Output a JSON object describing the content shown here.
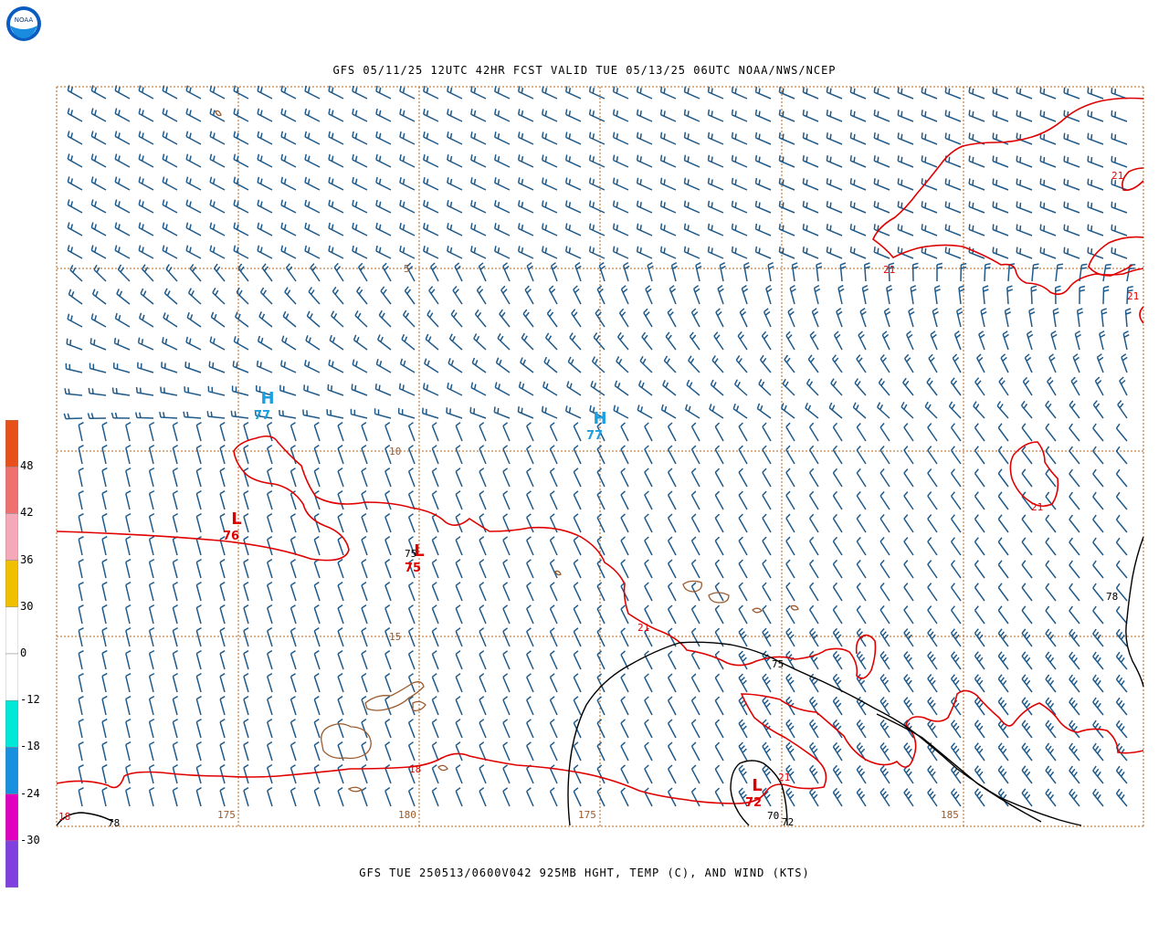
{
  "header": {
    "top_title": "GFS 05/11/25 12UTC 42HR FCST VALID TUE 05/13/25 06UTC NOAA/NWS/NCEP",
    "bottom_title": "GFS TUE 250513/0600V042 925MB HGHT, TEMP (C), AND WIND (KTS)",
    "logo_text": "NOAA"
  },
  "colors": {
    "grid": "#b5651d",
    "barb": "#1f5a8a",
    "isotherm": "#e00000",
    "height_contour": "#000000",
    "high": "#1aa0e0",
    "low": "#e00000",
    "coastline": "#9b5b2e"
  },
  "colorbar": {
    "labels": [
      "48",
      "42",
      "36",
      "30",
      "0",
      "-12",
      "-18",
      "-24",
      "-30"
    ],
    "swatches": [
      "#e8501a",
      "#f07070",
      "#f4a8b8",
      "#f0c000",
      "#ffffff",
      "#ffffff",
      "#00e8d8",
      "#1890e0",
      "#e000c0",
      "#8040e0"
    ]
  },
  "lat_labels": [
    "5",
    "10",
    "15",
    "18",
    "18"
  ],
  "lon_labels": [
    "175",
    "180",
    "175",
    "185",
    "70",
    "78"
  ],
  "pressure_centers": [
    {
      "type": "H",
      "value": "77",
      "color": "high"
    },
    {
      "type": "H",
      "value": "77",
      "color": "high"
    },
    {
      "type": "L",
      "value": "76",
      "color": "low"
    },
    {
      "type": "L",
      "value": "75",
      "color": "low"
    },
    {
      "type": "L",
      "value": "72",
      "color": "low"
    }
  ],
  "contour_labels": {
    "isotherm": [
      "21",
      "21",
      "21",
      "21",
      "21",
      "21"
    ],
    "height": [
      "78",
      "75",
      "75",
      "78",
      "70",
      "72"
    ]
  }
}
